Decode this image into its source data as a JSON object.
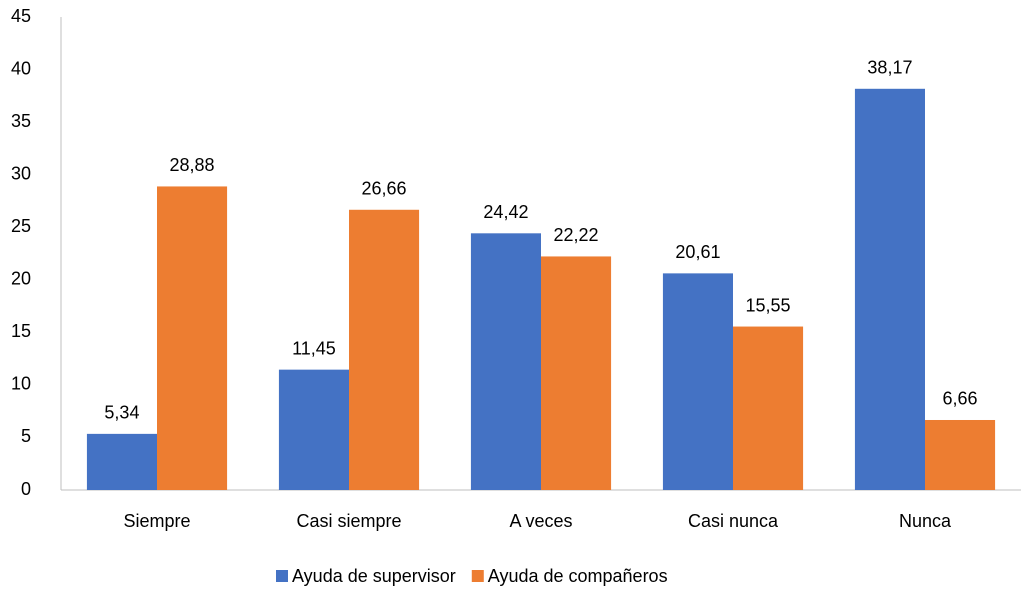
{
  "chart_data": {
    "type": "bar",
    "categories": [
      "Siempre",
      "Casi siempre",
      "A veces",
      "Casi nunca",
      "Nunca"
    ],
    "series": [
      {
        "name": "Ayuda de supervisor",
        "color": "#4472c4",
        "values": [
          5.34,
          11.45,
          24.42,
          20.61,
          38.17
        ],
        "value_labels": [
          "5,34",
          "11,45",
          "24,42",
          "20,61",
          "38,17"
        ]
      },
      {
        "name": "Ayuda de compañeros",
        "color": "#ed7d31",
        "values": [
          28.88,
          26.66,
          22.22,
          15.55,
          6.66
        ],
        "value_labels": [
          "28,88",
          "26,66",
          "22,22",
          "15,55",
          "6,66"
        ]
      }
    ],
    "ylim": [
      0,
      45
    ],
    "yticks": [
      0,
      5,
      10,
      15,
      20,
      25,
      30,
      35,
      40,
      45
    ],
    "grid": false,
    "legend": "bottom"
  }
}
